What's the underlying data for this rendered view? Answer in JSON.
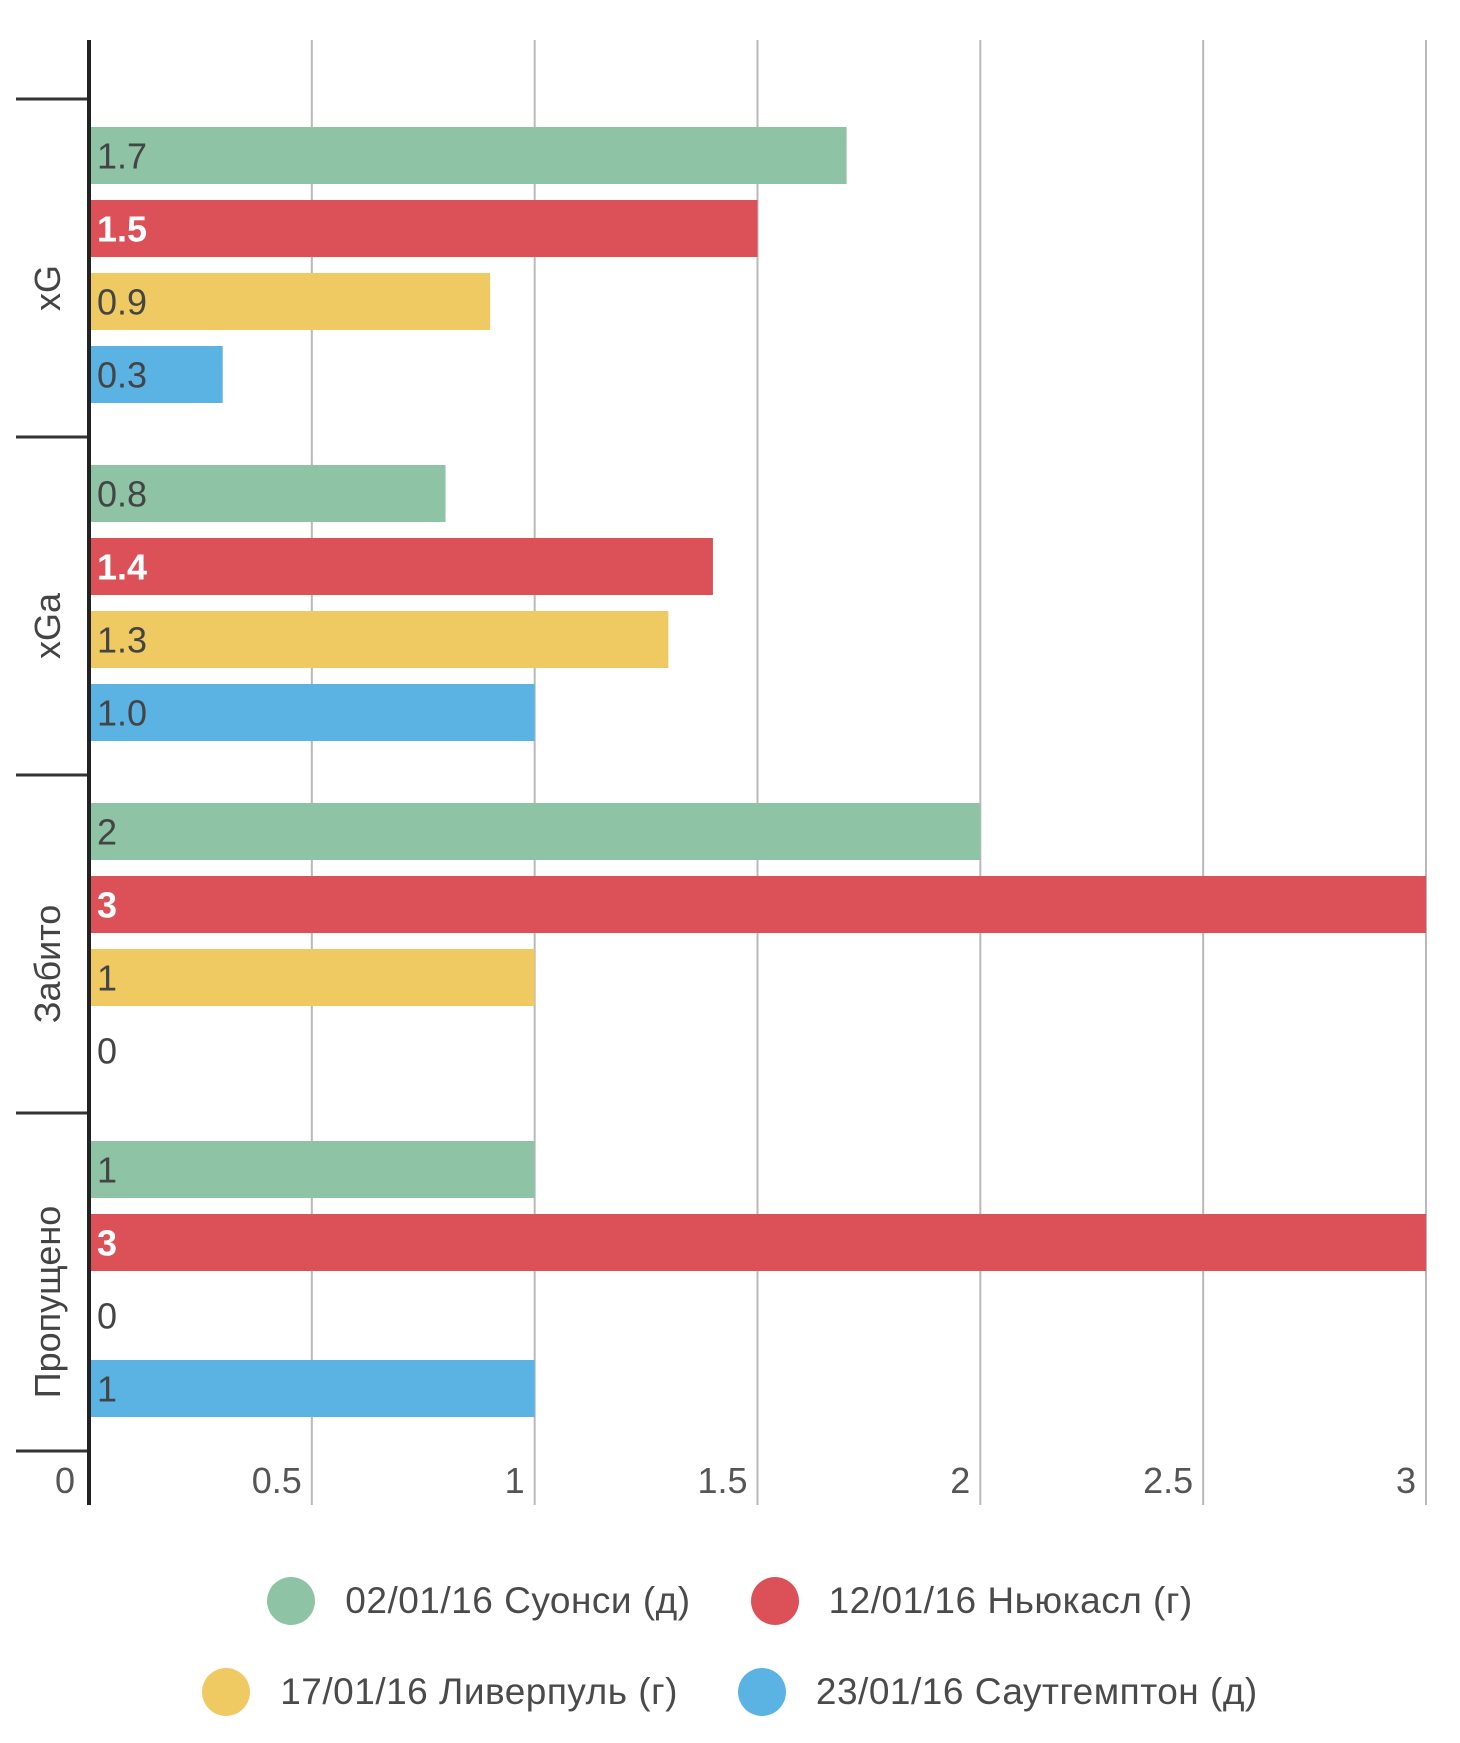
{
  "chart_data": {
    "type": "bar",
    "orientation": "horizontal",
    "categories": [
      "xG",
      "xGa",
      "Забито",
      "Пропущено"
    ],
    "series": [
      {
        "name": "02/01/16 Суонси (д)",
        "color": "#8ec3a5",
        "values": [
          1.7,
          0.8,
          2,
          1
        ],
        "labels": [
          "1.7",
          "0.8",
          "2",
          "1"
        ]
      },
      {
        "name": "12/01/16 Ньюкасл (г)",
        "color": "#dc5157",
        "values": [
          1.5,
          1.4,
          3,
          3
        ],
        "labels": [
          "1.5",
          "1.4",
          "3",
          "3"
        ]
      },
      {
        "name": "17/01/16 Ливерпуль (г)",
        "color": "#efca62",
        "values": [
          0.9,
          1.3,
          1,
          0
        ],
        "labels": [
          "0.9",
          "1.3",
          "1",
          "0"
        ]
      },
      {
        "name": "23/01/16 Саутгемптон (д)",
        "color": "#5bb3e3",
        "values": [
          0.3,
          1.0,
          0,
          1
        ],
        "labels": [
          "0.3",
          "1.0",
          "0",
          "1"
        ]
      }
    ],
    "x_ticks": [
      "0",
      "0.5",
      "1",
      "1.5",
      "2",
      "2.5",
      "3"
    ],
    "xlim": [
      0,
      3
    ],
    "grid": true,
    "legend_position": "bottom"
  }
}
